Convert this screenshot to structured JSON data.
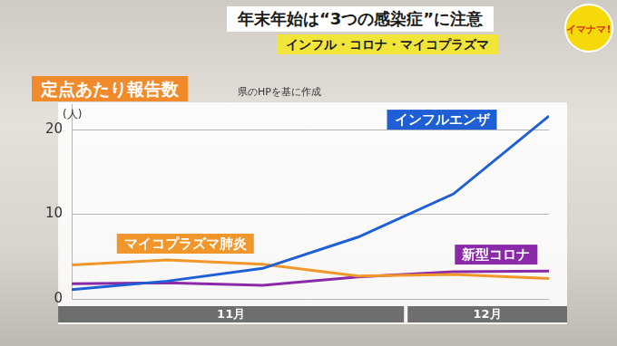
{
  "chart_data": {
    "type": "line",
    "title": "年末年始は“3つの感染症”に注意",
    "subtitle": "インフル・コロナ・マイコプラズマ",
    "logo": "イマナマ!",
    "ylabel": "定点あたり報告数",
    "source": "県のHPを基に作成",
    "y_unit": "(人)",
    "categories": [
      "11月",
      "11月",
      "11月",
      "11月",
      "12月",
      "12月"
    ],
    "series": [
      {
        "name": "インフルエンザ",
        "color": "#1f5fd6",
        "values": [
          1.1,
          2.1,
          3.6,
          7.3,
          12.4,
          21.6
        ]
      },
      {
        "name": "マイコプラズマ肺炎",
        "color": "#f0962a",
        "values": [
          4.0,
          4.6,
          4.1,
          2.7,
          2.9,
          2.4
        ]
      },
      {
        "name": "新型コロナ",
        "color": "#8a2aa8",
        "values": [
          1.8,
          1.9,
          1.6,
          2.6,
          3.2,
          3.3
        ]
      }
    ],
    "ylim": [
      0,
      23
    ],
    "yticks": [
      0,
      10,
      20
    ],
    "grid": true,
    "marker": "none",
    "line_style": "solid"
  }
}
